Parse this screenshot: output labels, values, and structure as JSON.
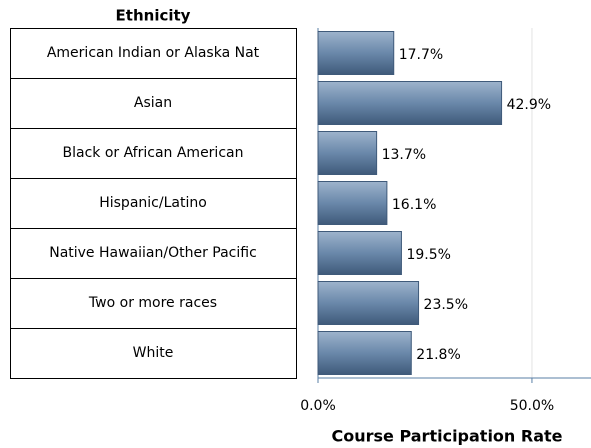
{
  "chart_data": {
    "type": "bar",
    "orientation": "horizontal",
    "category_header": "Ethnicity",
    "categories": [
      "American Indian or Alaska Nat",
      "Asian",
      "Black or African American",
      "Hispanic/Latino",
      "Native Hawaiian/Other Pacific",
      "Two or more races",
      "White"
    ],
    "values": [
      17.7,
      42.9,
      13.7,
      16.1,
      19.5,
      23.5,
      21.8
    ],
    "value_labels": [
      "17.7%",
      "42.9%",
      "13.7%",
      "16.1%",
      "19.5%",
      "23.5%",
      "21.8%"
    ],
    "color": "#6a88aa",
    "xlabel": "Course Participation Rate",
    "xlim": [
      0,
      63.8
    ],
    "xticks": [
      {
        "value": 0,
        "label": "0.0%"
      },
      {
        "value": 50,
        "label": "50.0%"
      }
    ],
    "grid": true
  }
}
